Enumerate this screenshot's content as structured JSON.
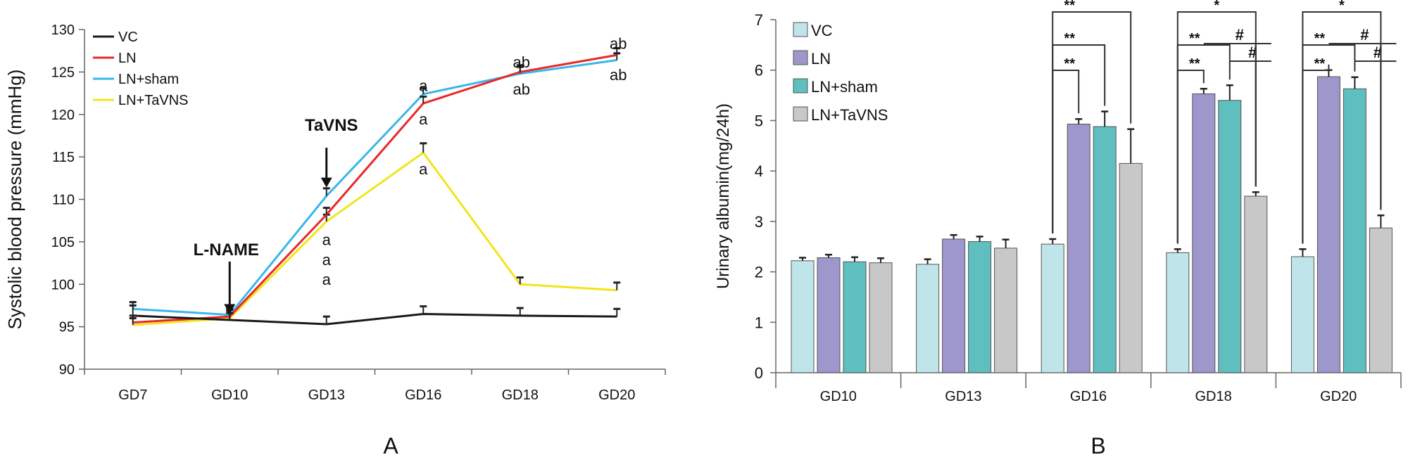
{
  "panel_a_label": "A",
  "panel_b_label": "B",
  "colors": {
    "VC": "#1a1a1a",
    "LN": "#e8282b",
    "LN+sham": "#38b7ea",
    "LN+TaVNS": "#f2e41c",
    "bar_VC": "#bfe4e9",
    "bar_LN": "#9d97cc",
    "bar_LN+sham": "#5fbfbf",
    "bar_LN+TaVNS": "#c8c8c8"
  },
  "chart_data": [
    {
      "type": "line",
      "title": "",
      "xlabel": "",
      "ylabel": "Systolic blood pressure (mmHg)",
      "categories": [
        "GD7",
        "GD10",
        "GD13",
        "GD16",
        "GD18",
        "GD20"
      ],
      "ylim": [
        90,
        130
      ],
      "yticks": [
        90,
        95,
        100,
        105,
        110,
        115,
        120,
        125,
        130
      ],
      "legend_position": "top-left",
      "series": [
        {
          "name": "VC",
          "values": [
            96.3,
            95.8,
            95.3,
            96.5,
            96.3,
            96.2
          ],
          "errors": [
            1.2,
            0.8,
            0.9,
            0.9,
            0.9,
            0.9
          ]
        },
        {
          "name": "LN",
          "values": [
            95.5,
            96.2,
            108.2,
            121.3,
            125.0,
            127.0
          ],
          "errors": [
            0.8,
            0.8,
            0.8,
            0.8,
            0.8,
            0.8
          ]
        },
        {
          "name": "LN+sham",
          "values": [
            97.1,
            96.4,
            110.4,
            122.4,
            124.8,
            126.4
          ],
          "errors": [
            0.8,
            0.7,
            0.9,
            0.7,
            0.8,
            0.8
          ]
        },
        {
          "name": "LN+TaVNS",
          "values": [
            95.2,
            96.0,
            107.4,
            115.5,
            100.0,
            99.3
          ],
          "errors": [
            0.8,
            0.8,
            0.8,
            1.1,
            0.8,
            0.9
          ]
        }
      ],
      "annotations": [
        {
          "text": "L-NAME",
          "x": "GD10",
          "kind": "arrow"
        },
        {
          "text": "TaVNS",
          "x": "GD13",
          "kind": "arrow"
        },
        {
          "text": "a",
          "x": "GD13",
          "y": 105.3
        },
        {
          "text": "a",
          "x": "GD13",
          "y": 102.9
        },
        {
          "text": "a",
          "x": "GD13",
          "y": 100.6
        },
        {
          "text": "a",
          "x": "GD16",
          "y": 123.4
        },
        {
          "text": "a",
          "x": "GD16",
          "y": 119.5
        },
        {
          "text": "a",
          "x": "GD16",
          "y": 113.6
        },
        {
          "text": "ab",
          "x": "GD18",
          "y": 126.2
        },
        {
          "text": "ab",
          "x": "GD18",
          "y": 123.0
        },
        {
          "text": "ab",
          "x": "GD20",
          "y": 128.4
        },
        {
          "text": "ab",
          "x": "GD20",
          "y": 124.7
        }
      ]
    },
    {
      "type": "bar",
      "title": "",
      "xlabel": "",
      "ylabel": "Urinary albumin(mg/24h)",
      "categories": [
        "GD10",
        "GD13",
        "GD16",
        "GD18",
        "GD20"
      ],
      "ylim": [
        0,
        7
      ],
      "yticks": [
        0,
        1,
        2,
        3,
        4,
        5,
        6,
        7
      ],
      "legend_position": "top-left",
      "series": [
        {
          "name": "VC",
          "values": [
            2.22,
            2.15,
            2.55,
            2.38,
            2.3
          ],
          "errors": [
            0.06,
            0.1,
            0.1,
            0.07,
            0.15
          ]
        },
        {
          "name": "LN",
          "values": [
            2.28,
            2.65,
            4.93,
            5.53,
            5.87
          ],
          "errors": [
            0.06,
            0.08,
            0.1,
            0.1,
            0.13
          ]
        },
        {
          "name": "LN+sham",
          "values": [
            2.2,
            2.6,
            4.88,
            5.4,
            5.63
          ],
          "errors": [
            0.09,
            0.1,
            0.3,
            0.3,
            0.23
          ]
        },
        {
          "name": "LN+TaVNS",
          "values": [
            2.18,
            2.47,
            4.15,
            3.5,
            2.87
          ],
          "errors": [
            0.09,
            0.17,
            0.68,
            0.08,
            0.25
          ]
        }
      ],
      "significance": [
        {
          "category": "GD16",
          "from": "VC",
          "to": "LN",
          "text": "**",
          "level": 1
        },
        {
          "category": "GD16",
          "from": "VC",
          "to": "LN+sham",
          "text": "**",
          "level": 2
        },
        {
          "category": "GD16",
          "from": "VC",
          "to": "LN+TaVNS",
          "text": "**",
          "level": 3
        },
        {
          "category": "GD18",
          "from": "VC",
          "to": "LN",
          "text": "**",
          "level": 1
        },
        {
          "category": "GD18",
          "from": "VC",
          "to": "LN+sham",
          "text": "**",
          "level": 2
        },
        {
          "category": "GD18",
          "from": "VC",
          "to": "LN+TaVNS",
          "text": "*",
          "level": 3
        },
        {
          "category": "GD18",
          "from": "LN+sham",
          "to": "LN+TaVNS",
          "text": "#",
          "level": 1
        },
        {
          "category": "GD18",
          "from": "LN",
          "to": "LN+TaVNS",
          "text": "#",
          "level": 2
        },
        {
          "category": "GD20",
          "from": "VC",
          "to": "LN",
          "text": "**",
          "level": 1
        },
        {
          "category": "GD20",
          "from": "VC",
          "to": "LN+sham",
          "text": "**",
          "level": 2
        },
        {
          "category": "GD20",
          "from": "VC",
          "to": "LN+TaVNS",
          "text": "*",
          "level": 3
        },
        {
          "category": "GD20",
          "from": "LN+sham",
          "to": "LN+TaVNS",
          "text": "#",
          "level": 1
        },
        {
          "category": "GD20",
          "from": "LN",
          "to": "LN+TaVNS",
          "text": "#",
          "level": 2
        }
      ]
    }
  ]
}
